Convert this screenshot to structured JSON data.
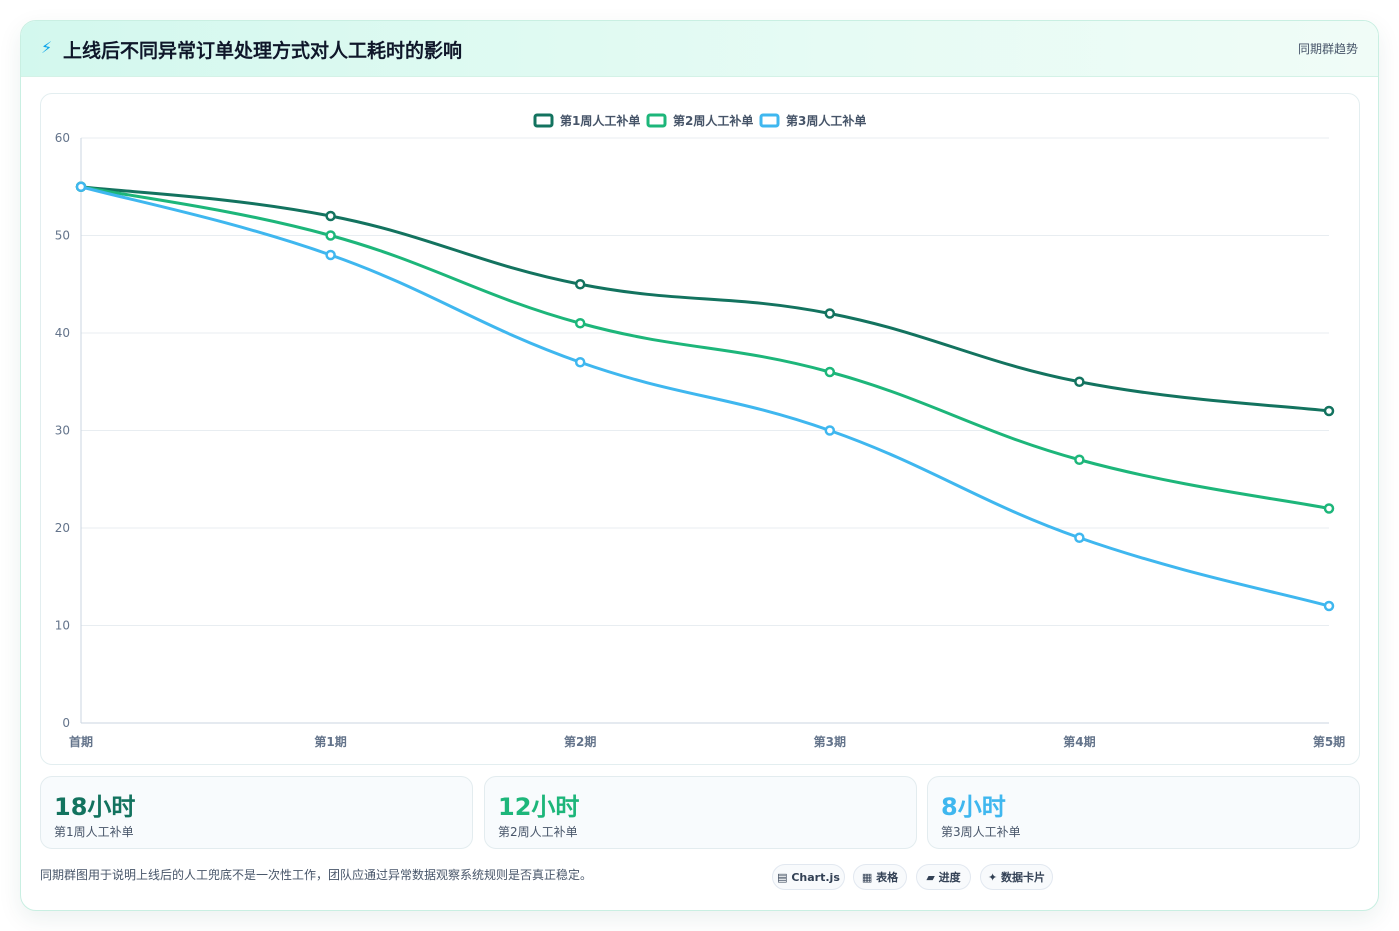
{
  "header": {
    "icon": "lightning-icon",
    "title": "上线后不同异常订单处理方式对人工耗时的影响",
    "subtitle": "同期群趋势"
  },
  "chart_data": {
    "type": "line",
    "categories": [
      "首期",
      "第1期",
      "第2期",
      "第3期",
      "第4期",
      "第5期"
    ],
    "series": [
      {
        "name": "第1周人工补单",
        "color": "#13735f",
        "values": [
          55,
          52,
          45,
          42,
          35,
          32
        ]
      },
      {
        "name": "第2周人工补单",
        "color": "#1db67a",
        "values": [
          55,
          50,
          41,
          36,
          27,
          22
        ]
      },
      {
        "name": "第3周人工补单",
        "color": "#3fb7ef",
        "values": [
          55,
          48,
          37,
          30,
          19,
          12
        ]
      }
    ],
    "ylim": [
      0,
      60
    ],
    "yticks": [
      0,
      10,
      20,
      30,
      40,
      50,
      60
    ],
    "grid": true,
    "legend": "top-center"
  },
  "stats": [
    {
      "value": "18小时",
      "label": "第1周人工补单",
      "color": "#13735f"
    },
    {
      "value": "12小时",
      "label": "第2周人工补单",
      "color": "#1db67a"
    },
    {
      "value": "8小时",
      "label": "第3周人工补单",
      "color": "#3fb7ef"
    }
  ],
  "footer": {
    "note": "同期群图用于说明上线后的人工兜底不是一次性工作，团队应通过异常数据观察系统规则是否真正稳定。",
    "chips": [
      {
        "icon": "chart-icon",
        "glyph": "▤",
        "label": "Chart.js"
      },
      {
        "icon": "table-icon",
        "glyph": "▦",
        "label": "表格"
      },
      {
        "icon": "progress-icon",
        "glyph": "▰",
        "label": "进度"
      },
      {
        "icon": "sparkle-icon",
        "glyph": "✦",
        "label": "数据卡片"
      }
    ]
  }
}
